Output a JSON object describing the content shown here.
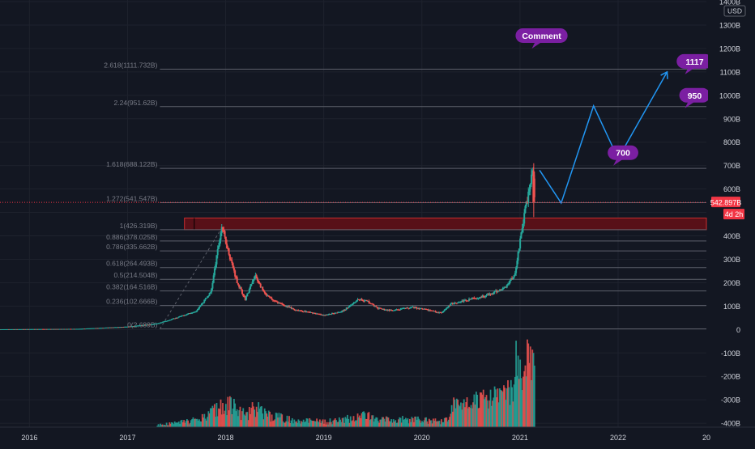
{
  "window": {
    "currency_label": "USD"
  },
  "colors": {
    "background": "#131722",
    "grid": "#1e222d",
    "up": "#26a69a",
    "down": "#ef5350",
    "fib_line": "#5d606b",
    "fib_text": "#787b86",
    "projection": "#2196f3",
    "callout": "#7b1fa2",
    "resistance_zone": "#5c1018",
    "price_tag": "#f23645"
  },
  "chart_data": {
    "type": "candlestick",
    "title": "",
    "xlabel": "",
    "ylabel": "",
    "x_ticks": [
      "2016",
      "2017",
      "2018",
      "2019",
      "2020",
      "2021",
      "2022",
      "20"
    ],
    "y_ticks": [
      "1400B",
      "1300B",
      "1200B",
      "1100B",
      "1000B",
      "900B",
      "800B",
      "700B",
      "600B",
      "500B",
      "400B",
      "300B",
      "200B",
      "100B",
      "0",
      "-100B",
      "-200B",
      "-300B",
      "-400B"
    ],
    "y_tick_values": [
      1400,
      1300,
      1200,
      1100,
      1000,
      900,
      800,
      700,
      600,
      500,
      400,
      300,
      200,
      100,
      0,
      -100,
      -200,
      -300,
      -400
    ],
    "ylim": [
      -410,
      1400
    ],
    "xlim": [
      2015.7,
      2022.9
    ],
    "market_cap_series": {
      "name": "",
      "x": [
        2015.7,
        2016.5,
        2017.0,
        2017.3,
        2017.5,
        2017.7,
        2017.85,
        2017.96,
        2018.05,
        2018.12,
        2018.2,
        2018.3,
        2018.4,
        2018.5,
        2018.7,
        2018.9,
        2019.0,
        2019.2,
        2019.35,
        2019.45,
        2019.55,
        2019.7,
        2019.9,
        2020.1,
        2020.2,
        2020.3,
        2020.5,
        2020.7,
        2020.85,
        2020.95,
        2021.0,
        2021.05,
        2021.1,
        2021.13,
        2021.15
      ],
      "close": [
        1,
        3,
        12,
        25,
        50,
        80,
        160,
        440,
        300,
        200,
        130,
        230,
        150,
        120,
        85,
        70,
        60,
        80,
        130,
        120,
        90,
        80,
        95,
        80,
        70,
        110,
        130,
        150,
        180,
        240,
        380,
        500,
        620,
        680,
        542.9
      ]
    },
    "volume_series": {
      "name": "",
      "note": "volume histogram drawn below zero line"
    },
    "fib_levels": [
      {
        "label": "0(2.689B)",
        "value": 2.689
      },
      {
        "label": "0.236(102.666B)",
        "value": 102.666
      },
      {
        "label": "0.382(164.516B)",
        "value": 164.516
      },
      {
        "label": "0.5(214.504B)",
        "value": 214.504
      },
      {
        "label": "0.618(264.493B)",
        "value": 264.493
      },
      {
        "label": "0.786(335.662B)",
        "value": 335.662
      },
      {
        "label": "0.886(378.025B)",
        "value": 378.025
      },
      {
        "label": "1(426.319B)",
        "value": 426.319
      },
      {
        "label": "1.272(541.547B)",
        "value": 541.547
      },
      {
        "label": "1.618(688.122B)",
        "value": 688.122
      },
      {
        "label": "2.24(951.62B)",
        "value": 951.62
      },
      {
        "label": "2.618(1111.732B)",
        "value": 1111.732
      }
    ],
    "resistance_zone": {
      "from": 426.319,
      "to": 476
    },
    "projection_path": {
      "x": [
        2021.2,
        2021.42,
        2021.75,
        2022.0,
        2022.5
      ],
      "y": [
        680,
        540,
        955,
        730,
        1100
      ]
    },
    "current_price_label": "542.897B",
    "countdown_label": "4d 2h",
    "current_price_value": 542.897,
    "callouts": [
      {
        "text": "Comment",
        "x": 2021.22,
        "y": 1255
      },
      {
        "text": "1117",
        "x": 2022.78,
        "y": 1145
      },
      {
        "text": "950",
        "x": 2022.78,
        "y": 1000
      },
      {
        "text": "700",
        "x": 2022.05,
        "y": 755
      }
    ],
    "grid": true,
    "legend": "none"
  }
}
